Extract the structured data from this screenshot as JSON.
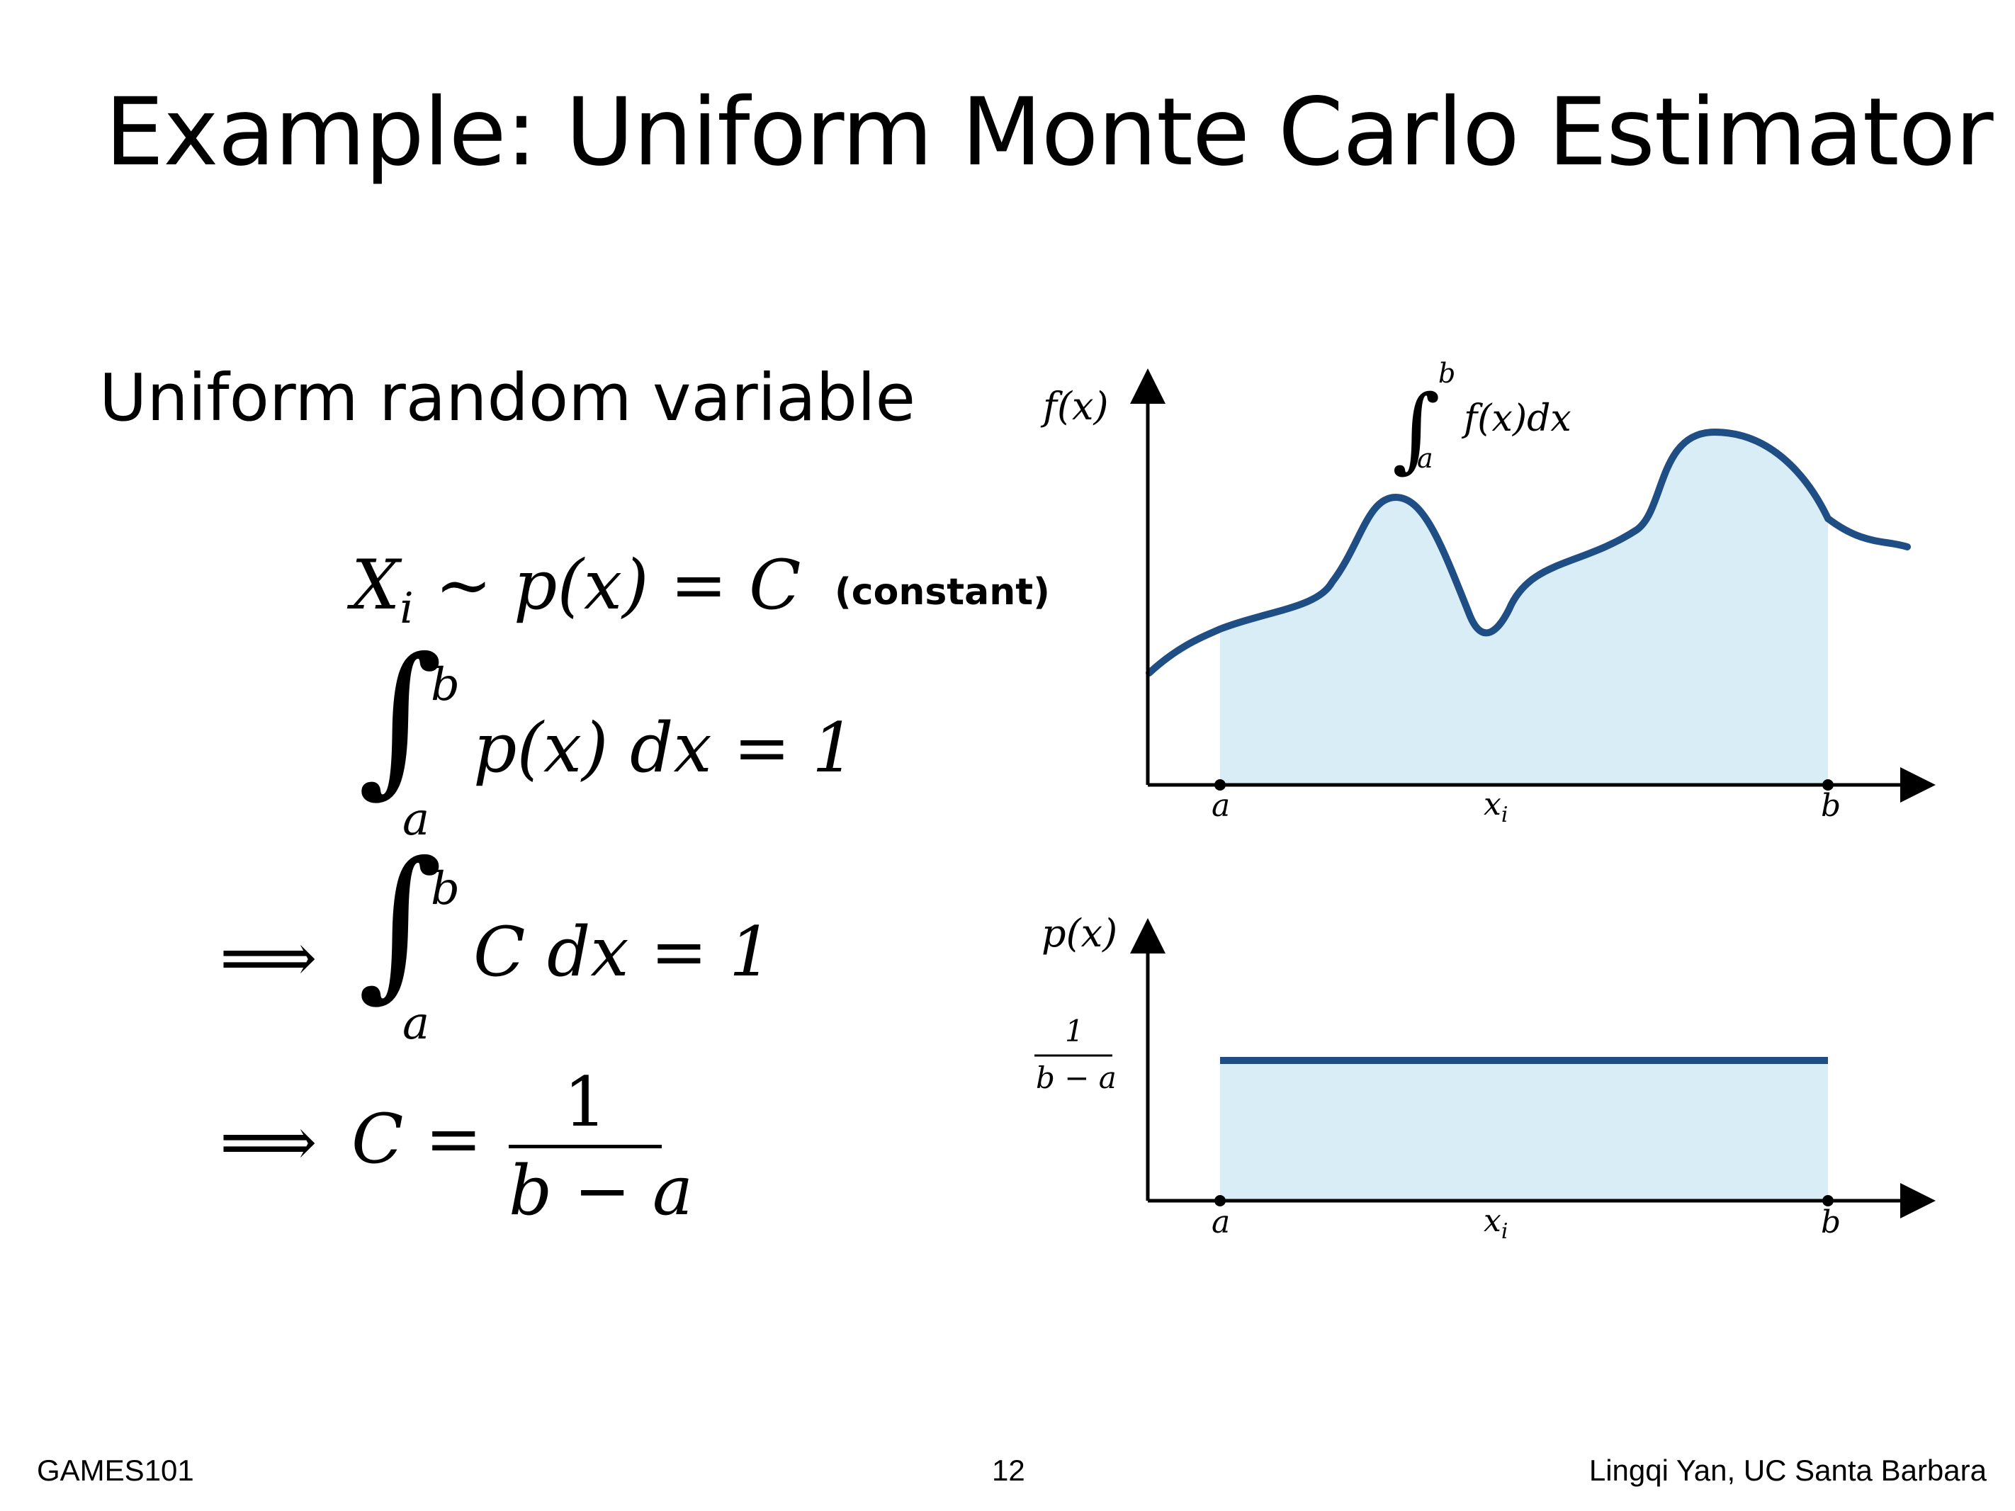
{
  "slide": {
    "title": "Example: Uniform Monte Carlo Estimator",
    "subtitle": "Uniform random variable",
    "constant_note": "(constant)"
  },
  "equations": {
    "eq1": {
      "lhs": "X",
      "sub": "i",
      "rest": " ∼ p(x) = C"
    },
    "eq2": {
      "upper": "b",
      "lower": "a",
      "body": "p(x) dx = 1"
    },
    "eq3": {
      "arrow": "⟹",
      "upper": "b",
      "lower": "a",
      "body": "C dx = 1"
    },
    "eq4": {
      "arrow": "⟹",
      "lhs": "C = ",
      "num": "1",
      "den": "b − a"
    }
  },
  "diagram_top": {
    "ylabel": "f(x)",
    "integral_upper": "b",
    "integral_lower": "a",
    "integral_body": "f(x)dx",
    "x_ticks": [
      "a",
      "x",
      "b"
    ],
    "x_tick_sub": "i"
  },
  "diagram_bottom": {
    "ylabel": "p(x)",
    "level_num": "1",
    "level_den": "b − a",
    "x_ticks": [
      "a",
      "x",
      "b"
    ],
    "x_tick_sub": "i"
  },
  "colors": {
    "curve": "#1f4e84",
    "fill": "#d8edf5",
    "axis": "#000000"
  },
  "footer": {
    "left": "GAMES101",
    "center": "12",
    "right": "Lingqi Yan, UC Santa Barbara"
  }
}
